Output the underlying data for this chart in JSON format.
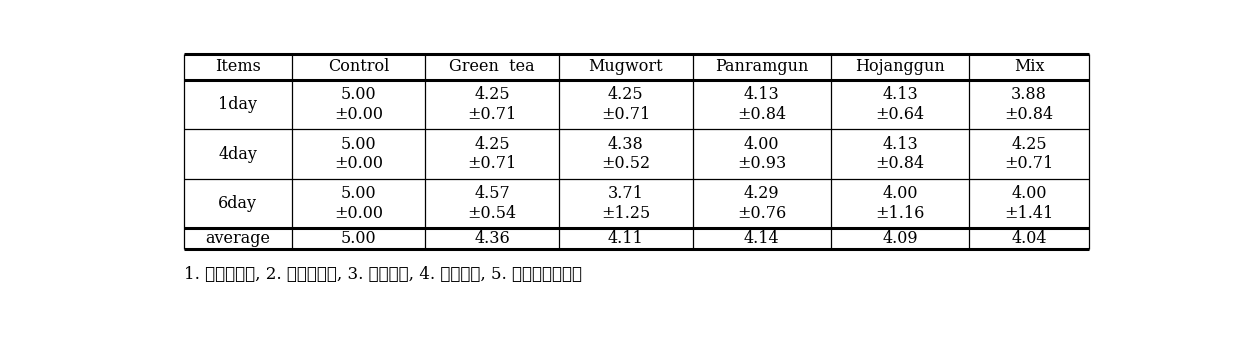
{
  "headers": [
    "Items",
    "Control",
    "Green  tea",
    "Mugwort",
    "Panramgun",
    "Hojanggun",
    "Mix"
  ],
  "rows": [
    {
      "label": "1day",
      "values": [
        "5.00",
        "4.25",
        "4.25",
        "4.13",
        "4.13",
        "3.88"
      ],
      "sd": [
        "±0.00",
        "±0.71",
        "±0.71",
        "±0.84",
        "±0.64",
        "±0.84"
      ]
    },
    {
      "label": "4day",
      "values": [
        "5.00",
        "4.25",
        "4.38",
        "4.00",
        "4.13",
        "4.25"
      ],
      "sd": [
        "±0.00",
        "±0.71",
        "±0.52",
        "±0.93",
        "±0.84",
        "±0.71"
      ]
    },
    {
      "label": "6day",
      "values": [
        "5.00",
        "4.57",
        "3.71",
        "4.29",
        "4.00",
        "4.00"
      ],
      "sd": [
        "±0.00",
        "±0.54",
        "±1.25",
        "±0.76",
        "±1.16",
        "±1.41"
      ]
    },
    {
      "label": "average",
      "values": [
        "5.00",
        "4.36",
        "4.11",
        "4.14",
        "4.09",
        "4.04"
      ],
      "sd": [
        null,
        null,
        null,
        null,
        null,
        null
      ]
    }
  ],
  "footnote": "1. 매우심하다, 2. 조금심하다, 3. 보통이다, 4. 조금난다, 5. 전혀나지않는다",
  "background_color": "#ffffff",
  "text_color": "#000000",
  "font_size": 11.5,
  "footnote_font_size": 12
}
